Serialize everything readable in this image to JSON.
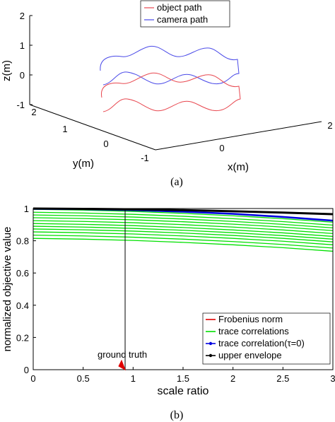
{
  "chart_data": [
    {
      "type": "line",
      "panel": "(a)",
      "legend": {
        "position": "top",
        "entries": [
          "object path",
          "camera path"
        ],
        "colors": [
          "#e8474f",
          "#4a4ae8"
        ]
      },
      "zlabel": "z(m)",
      "ylabel": "y(m)",
      "xlabel": "x(m)",
      "z_ticks": [
        "2",
        "1",
        "0",
        "-1"
      ],
      "y_ticks": [
        "2",
        "1",
        "0",
        "-1"
      ],
      "x_ticks": [
        "0",
        "2"
      ],
      "zlim": [
        -1,
        2
      ],
      "series": [
        {
          "name": "object path",
          "color": "#e8474f"
        },
        {
          "name": "camera path",
          "color": "#4a4ae8"
        }
      ]
    },
    {
      "type": "line",
      "panel": "(b)",
      "xlabel": "scale ratio",
      "ylabel": "normalized objective value",
      "xlim": [
        0,
        3
      ],
      "ylim": [
        0,
        1
      ],
      "x_ticks": [
        "0",
        "0.5",
        "1",
        "1.5",
        "2",
        "2.5",
        "3"
      ],
      "y_ticks": [
        "0",
        "0.2",
        "0.4",
        "0.6",
        "0.8",
        "1"
      ],
      "legend": {
        "position": "bottom-right",
        "entries": [
          "Frobenius norm",
          "trace correlations",
          "trace correlation(τ=0)",
          "upper envelope"
        ],
        "colors": [
          "#e00000",
          "#00e000",
          "#0000e0",
          "#000000"
        ]
      },
      "annotation": {
        "text": "ground truth",
        "x": 0.92
      },
      "series": [
        {
          "name": "upper envelope",
          "color": "#000000",
          "x": [
            0,
            0.5,
            1,
            1.5,
            2,
            2.5,
            3
          ],
          "values": [
            1.0,
            0.998,
            0.995,
            0.99,
            0.983,
            0.975,
            0.965
          ]
        },
        {
          "name": "trace correlation(τ=0)",
          "color": "#0000e0",
          "x": [
            0,
            0.5,
            1,
            1.5,
            2,
            2.5,
            3
          ],
          "values": [
            0.998,
            0.996,
            0.99,
            0.98,
            0.967,
            0.948,
            0.925
          ]
        },
        {
          "name": "trace correlations",
          "color": "#00e000",
          "offsets": [
            0.0,
            0.018,
            0.035,
            0.052,
            0.07,
            0.088,
            0.105,
            0.122,
            0.14,
            0.16,
            0.18
          ],
          "x": [
            0,
            0.5,
            1,
            1.5,
            2,
            2.5,
            3
          ],
          "values": [
            0.995,
            0.99,
            0.982,
            0.97,
            0.955,
            0.937,
            0.915
          ]
        }
      ]
    }
  ]
}
